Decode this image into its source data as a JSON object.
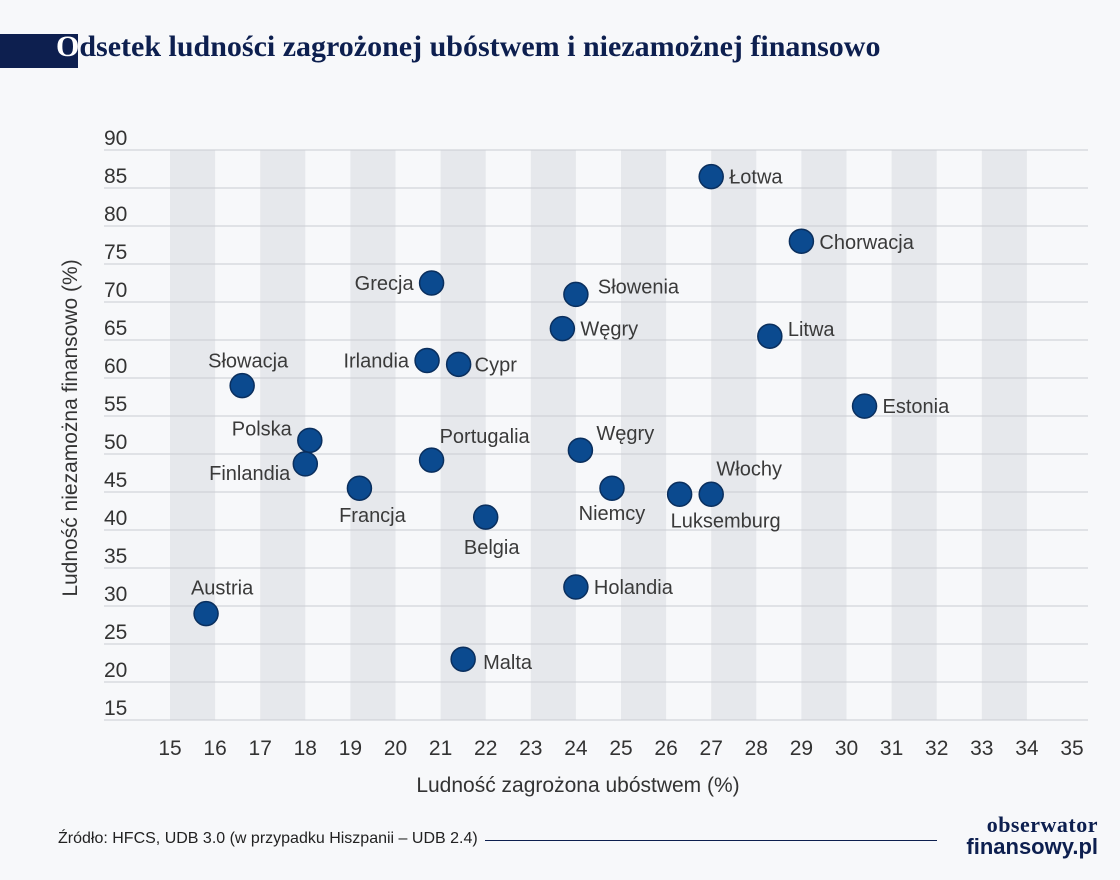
{
  "chart_data": {
    "type": "scatter",
    "title": "Odsetek ludności zagrożonej ubóstwem i niezamożnej finansowo",
    "title_initial": "O",
    "title_rest": "dsetek ludności zagrożonej ubóstwem i niezamożnej finansowo",
    "xlabel": "Ludność zagrożona ubóstwem (%)",
    "ylabel": "Ludność niezamożna finansowo (%)",
    "xlim": [
      15,
      35
    ],
    "ylim": [
      15,
      90
    ],
    "x_ticks": [
      15,
      16,
      17,
      18,
      19,
      20,
      21,
      22,
      23,
      24,
      25,
      26,
      27,
      28,
      29,
      30,
      31,
      32,
      33,
      34,
      35
    ],
    "y_ticks": [
      15,
      20,
      25,
      30,
      35,
      40,
      45,
      50,
      55,
      60,
      65,
      70,
      75,
      80,
      85,
      90
    ],
    "grid": true,
    "marker_color": "#0b4a8f",
    "points": [
      {
        "label": "Łotwa",
        "x": 27.0,
        "y": 86.5
      },
      {
        "label": "Chorwacja",
        "x": 29.0,
        "y": 78.0
      },
      {
        "label": "Grecja",
        "x": 20.8,
        "y": 72.5
      },
      {
        "label": "Słowenia",
        "x": 24.0,
        "y": 71.0
      },
      {
        "label": "Węgry",
        "x": 23.7,
        "y": 66.5
      },
      {
        "label": "Litwa",
        "x": 28.3,
        "y": 65.5
      },
      {
        "label": "Irlandia",
        "x": 20.7,
        "y": 62.3
      },
      {
        "label": "Cypr",
        "x": 21.4,
        "y": 61.8
      },
      {
        "label": "Słowacja",
        "x": 16.6,
        "y": 59.0
      },
      {
        "label": "Estonia",
        "x": 30.4,
        "y": 56.3
      },
      {
        "label": "Polska",
        "x": 18.1,
        "y": 51.8
      },
      {
        "label": "Węgry",
        "x": 24.1,
        "y": 50.5
      },
      {
        "label": "Portugalia",
        "x": 20.8,
        "y": 49.2
      },
      {
        "label": "Finlandia",
        "x": 18.0,
        "y": 48.7
      },
      {
        "label": "Francja",
        "x": 19.2,
        "y": 45.5
      },
      {
        "label": "Niemcy",
        "x": 24.8,
        "y": 45.5
      },
      {
        "label": "Luksemburg",
        "x": 26.3,
        "y": 44.7
      },
      {
        "label": "Włochy",
        "x": 27.0,
        "y": 44.7
      },
      {
        "label": "Belgia",
        "x": 22.0,
        "y": 41.7
      },
      {
        "label": "Holandia",
        "x": 24.0,
        "y": 32.5
      },
      {
        "label": "Austria",
        "x": 15.8,
        "y": 29.0
      },
      {
        "label": "Malta",
        "x": 21.5,
        "y": 23.0
      }
    ]
  },
  "footer": {
    "source": "Źródło: HFCS, UDB 3.0 (w przypadku Hiszpanii – UDB 2.4)"
  },
  "logo": {
    "line1": "obserwator",
    "line2": "finansowy.pl"
  }
}
